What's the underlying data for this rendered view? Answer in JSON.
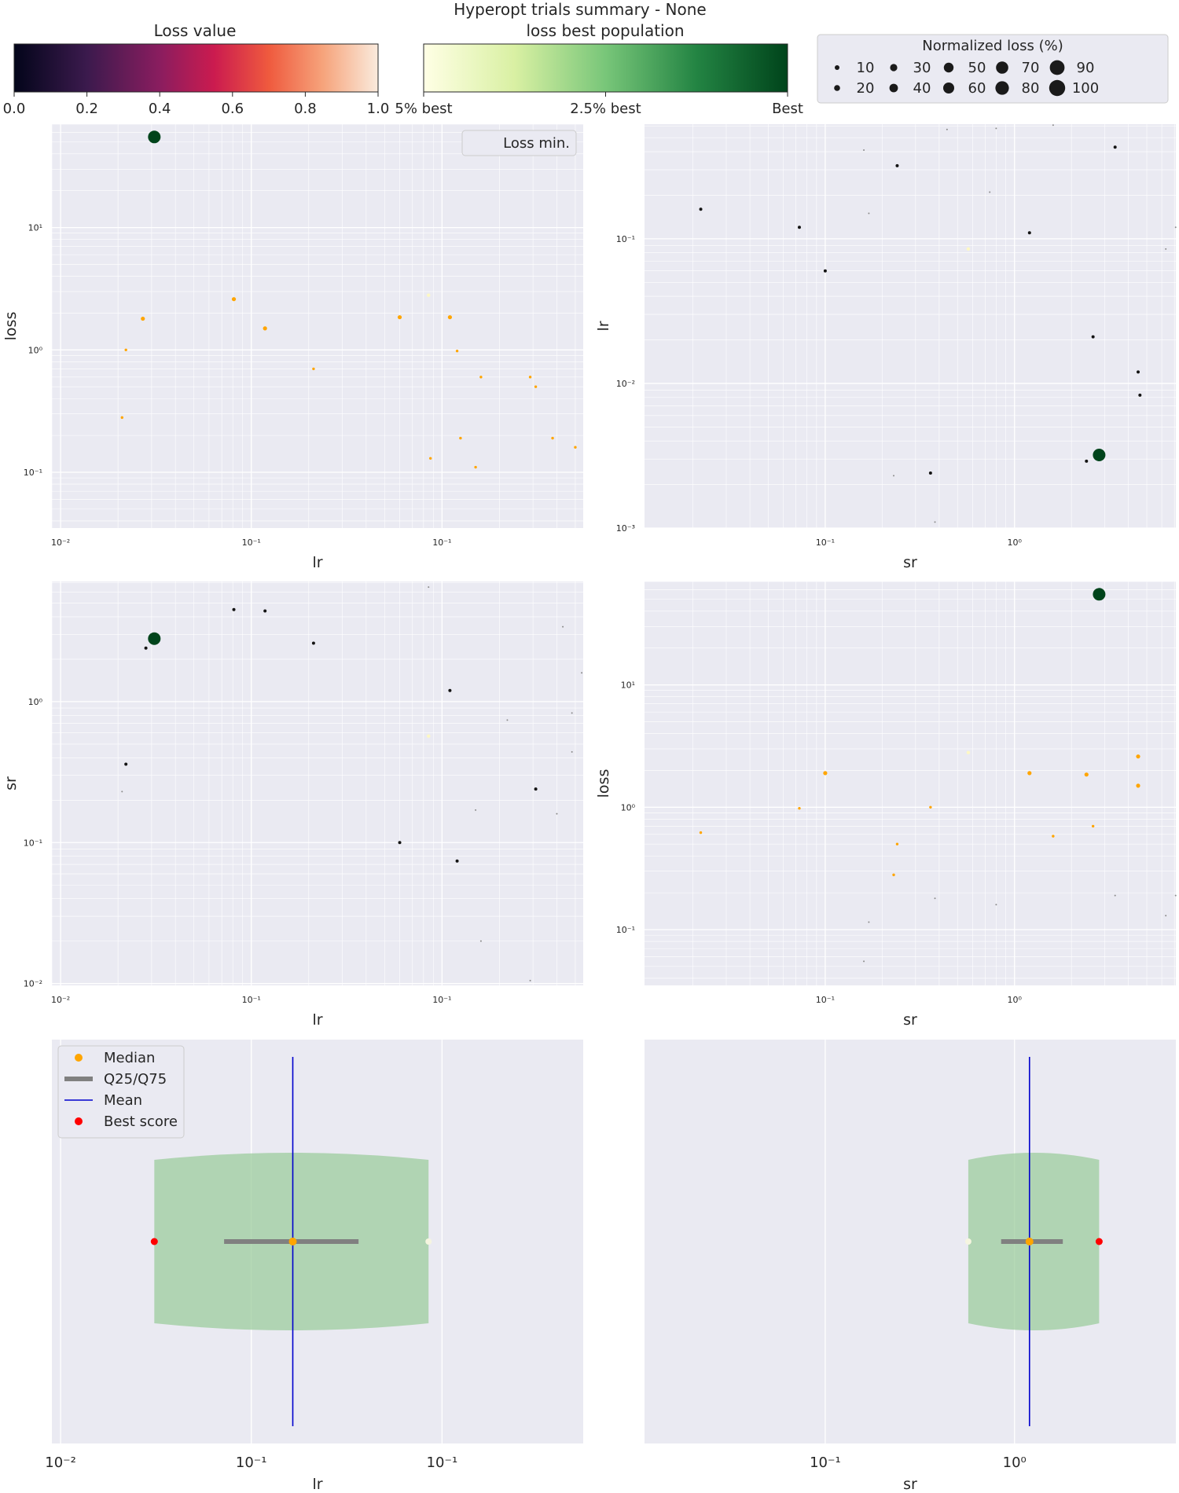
{
  "figure": {
    "title": "Hyperopt trials summary - None",
    "colorbar_loss": {
      "label": "Loss value",
      "ticks": [
        "0.0",
        "0.2",
        "0.4",
        "0.6",
        "0.8",
        "1.0"
      ]
    },
    "colorbar_best": {
      "label": "loss best population",
      "ticks": [
        "5% best",
        "2.5% best",
        "Best"
      ]
    },
    "size_legend": {
      "title": "Normalized loss (%)",
      "entries": [
        "10",
        "20",
        "30",
        "40",
        "50",
        "60",
        "70",
        "80",
        "90",
        "100"
      ]
    },
    "colors": {
      "axes_bg": "#eaeaf2",
      "grid": "#ffffff",
      "best": "#00441b",
      "median": "#ffa500",
      "mean": "#0000cd",
      "best_score": "#ff0000",
      "qband": "#808080",
      "violin": "#90c890"
    }
  },
  "chart_data": [
    {
      "id": "loss-vs-lr",
      "type": "scatter",
      "xlabel": "lr",
      "ylabel": "loss",
      "xscale": "log",
      "yscale": "log",
      "xlim": [
        0.0009,
        0.55
      ],
      "ylim": [
        0.035,
        70
      ],
      "xticks": [
        "10⁻²",
        "10⁻¹"
      ],
      "yticks": [
        "10⁻¹",
        "10⁰",
        "10¹"
      ],
      "legend": "Loss min.",
      "points": [
        {
          "x": 0.0031,
          "y": 55,
          "s": "best"
        },
        {
          "x": 0.0081,
          "y": 2.6,
          "s": "med"
        },
        {
          "x": 0.0027,
          "y": 1.8,
          "s": "med"
        },
        {
          "x": 0.0118,
          "y": 1.5,
          "s": "med"
        },
        {
          "x": 0.0022,
          "y": 1.0,
          "s": "sm"
        },
        {
          "x": 0.0212,
          "y": 0.7,
          "s": "sm"
        },
        {
          "x": 0.0021,
          "y": 0.28,
          "s": "sm"
        },
        {
          "x": 0.06,
          "y": 1.85,
          "s": "med"
        },
        {
          "x": 0.085,
          "y": 2.8,
          "s": "pale"
        },
        {
          "x": 0.11,
          "y": 1.85,
          "s": "med"
        },
        {
          "x": 0.12,
          "y": 0.98,
          "s": "sm"
        },
        {
          "x": 0.16,
          "y": 0.6,
          "s": "sm"
        },
        {
          "x": 0.29,
          "y": 0.6,
          "s": "sm"
        },
        {
          "x": 0.31,
          "y": 0.5,
          "s": "sm"
        },
        {
          "x": 0.125,
          "y": 0.19,
          "s": "sm"
        },
        {
          "x": 0.087,
          "y": 0.13,
          "s": "sm"
        },
        {
          "x": 0.15,
          "y": 0.11,
          "s": "sm"
        },
        {
          "x": 0.38,
          "y": 0.19,
          "s": "sm"
        },
        {
          "x": 0.5,
          "y": 0.16,
          "s": "sm"
        }
      ]
    },
    {
      "id": "lr-vs-sr",
      "type": "scatter",
      "xlabel": "sr",
      "ylabel": "lr",
      "xscale": "log",
      "yscale": "log",
      "xlim": [
        0.0111,
        7.12
      ],
      "ylim": [
        0.001,
        0.62
      ],
      "xticks": [
        "10⁻¹",
        "10⁰"
      ],
      "yticks": [
        "10⁻³",
        "10⁻²",
        "10⁻¹"
      ],
      "points": [
        {
          "x": 0.022,
          "y": 0.16,
          "s": "dk"
        },
        {
          "x": 0.073,
          "y": 0.12,
          "s": "dk"
        },
        {
          "x": 0.1,
          "y": 0.06,
          "s": "dk"
        },
        {
          "x": 0.24,
          "y": 0.32,
          "s": "dk"
        },
        {
          "x": 0.16,
          "y": 0.41,
          "s": "tiny"
        },
        {
          "x": 0.17,
          "y": 0.15,
          "s": "tiny"
        },
        {
          "x": 0.44,
          "y": 0.57,
          "s": "tiny"
        },
        {
          "x": 0.8,
          "y": 0.58,
          "s": "tiny"
        },
        {
          "x": 0.74,
          "y": 0.21,
          "s": "tiny"
        },
        {
          "x": 1.2,
          "y": 0.11,
          "s": "dk"
        },
        {
          "x": 0.57,
          "y": 0.085,
          "s": "pale"
        },
        {
          "x": 1.6,
          "y": 0.61,
          "s": "tiny"
        },
        {
          "x": 3.4,
          "y": 0.43,
          "s": "dk"
        },
        {
          "x": 6.3,
          "y": 0.085,
          "s": "tiny"
        },
        {
          "x": 7.1,
          "y": 0.12,
          "s": "tiny"
        },
        {
          "x": 2.6,
          "y": 0.021,
          "s": "dk"
        },
        {
          "x": 4.5,
          "y": 0.012,
          "s": "dk"
        },
        {
          "x": 4.6,
          "y": 0.0083,
          "s": "dk"
        },
        {
          "x": 2.8,
          "y": 0.0032,
          "s": "best"
        },
        {
          "x": 2.4,
          "y": 0.0029,
          "s": "dk"
        },
        {
          "x": 0.36,
          "y": 0.0024,
          "s": "dk"
        },
        {
          "x": 0.23,
          "y": 0.0023,
          "s": "tiny"
        },
        {
          "x": 0.38,
          "y": 0.0011,
          "s": "tiny"
        }
      ]
    },
    {
      "id": "sr-vs-lr",
      "type": "scatter",
      "xlabel": "lr",
      "ylabel": "sr",
      "xscale": "log",
      "yscale": "log",
      "xlim": [
        0.0009,
        0.55
      ],
      "ylim": [
        0.0097,
        7.12
      ],
      "xticks": [
        "10⁻²",
        "10⁻¹"
      ],
      "yticks": [
        "10⁻²",
        "10⁻¹",
        "10⁰"
      ],
      "points": [
        {
          "x": 0.0031,
          "y": 2.8,
          "s": "best"
        },
        {
          "x": 0.0028,
          "y": 2.4,
          "s": "dk"
        },
        {
          "x": 0.0081,
          "y": 4.5,
          "s": "dk"
        },
        {
          "x": 0.0118,
          "y": 4.4,
          "s": "dk"
        },
        {
          "x": 0.0212,
          "y": 2.6,
          "s": "dk"
        },
        {
          "x": 0.085,
          "y": 6.5,
          "s": "tiny"
        },
        {
          "x": 0.11,
          "y": 1.2,
          "s": "dk"
        },
        {
          "x": 0.0022,
          "y": 0.36,
          "s": "dk"
        },
        {
          "x": 0.0021,
          "y": 0.23,
          "s": "tiny"
        },
        {
          "x": 0.085,
          "y": 0.57,
          "s": "pale"
        },
        {
          "x": 0.22,
          "y": 0.74,
          "s": "tiny"
        },
        {
          "x": 0.43,
          "y": 3.4,
          "s": "tiny"
        },
        {
          "x": 0.48,
          "y": 0.83,
          "s": "tiny"
        },
        {
          "x": 0.48,
          "y": 0.44,
          "s": "tiny"
        },
        {
          "x": 0.54,
          "y": 1.6,
          "s": "tiny"
        },
        {
          "x": 0.31,
          "y": 0.24,
          "s": "dk"
        },
        {
          "x": 0.4,
          "y": 0.16,
          "s": "tiny"
        },
        {
          "x": 0.15,
          "y": 0.17,
          "s": "tiny"
        },
        {
          "x": 0.06,
          "y": 0.1,
          "s": "dk"
        },
        {
          "x": 0.12,
          "y": 0.074,
          "s": "dk"
        },
        {
          "x": 0.16,
          "y": 0.02,
          "s": "tiny"
        },
        {
          "x": 0.29,
          "y": 0.0105,
          "s": "tiny"
        }
      ]
    },
    {
      "id": "loss-vs-sr",
      "type": "scatter",
      "xlabel": "sr",
      "ylabel": "loss",
      "xscale": "log",
      "yscale": "log",
      "xlim": [
        0.0111,
        7.12
      ],
      "ylim": [
        0.035,
        70
      ],
      "xticks": [
        "10⁻¹",
        "10⁰"
      ],
      "yticks": [
        "10⁻¹",
        "10⁰",
        "10¹"
      ],
      "points": [
        {
          "x": 2.8,
          "y": 55,
          "s": "best"
        },
        {
          "x": 0.57,
          "y": 2.8,
          "s": "pale"
        },
        {
          "x": 0.1,
          "y": 1.9,
          "s": "med"
        },
        {
          "x": 1.2,
          "y": 1.9,
          "s": "med"
        },
        {
          "x": 2.4,
          "y": 1.85,
          "s": "med"
        },
        {
          "x": 4.5,
          "y": 2.6,
          "s": "med"
        },
        {
          "x": 4.5,
          "y": 1.5,
          "s": "med"
        },
        {
          "x": 0.073,
          "y": 0.98,
          "s": "sm"
        },
        {
          "x": 0.36,
          "y": 1.0,
          "s": "sm"
        },
        {
          "x": 2.6,
          "y": 0.7,
          "s": "sm"
        },
        {
          "x": 1.6,
          "y": 0.58,
          "s": "sm"
        },
        {
          "x": 0.022,
          "y": 0.62,
          "s": "sm"
        },
        {
          "x": 0.24,
          "y": 0.5,
          "s": "sm"
        },
        {
          "x": 0.23,
          "y": 0.28,
          "s": "sm"
        },
        {
          "x": 0.38,
          "y": 0.18,
          "s": "tiny"
        },
        {
          "x": 0.8,
          "y": 0.16,
          "s": "tiny"
        },
        {
          "x": 3.4,
          "y": 0.19,
          "s": "tiny"
        },
        {
          "x": 7.1,
          "y": 0.19,
          "s": "tiny"
        },
        {
          "x": 6.3,
          "y": 0.13,
          "s": "tiny"
        },
        {
          "x": 0.17,
          "y": 0.115,
          "s": "tiny"
        },
        {
          "x": 0.16,
          "y": 0.055,
          "s": "tiny"
        }
      ]
    },
    {
      "id": "lr-distribution",
      "type": "violin",
      "xlabel": "lr",
      "xscale": "log",
      "xlim": [
        0.0009,
        0.55
      ],
      "xticks": [
        "10⁻²",
        "10⁻¹"
      ],
      "legend": [
        "Median",
        "Q25/Q75",
        "Mean",
        "Best score"
      ],
      "min": 0.0031,
      "max": 0.085,
      "q25": 0.0072,
      "q75": 0.0365,
      "median": 0.0165,
      "mean": 0.0165,
      "best": 0.0031
    },
    {
      "id": "sr-distribution",
      "type": "violin",
      "xlabel": "sr",
      "xscale": "log",
      "xlim": [
        0.0111,
        7.12
      ],
      "xticks": [
        "10⁻¹",
        "10⁰"
      ],
      "min": 0.57,
      "max": 2.8,
      "q25": 0.85,
      "q75": 1.8,
      "median": 1.2,
      "mean": 1.2,
      "best": 2.8
    }
  ]
}
